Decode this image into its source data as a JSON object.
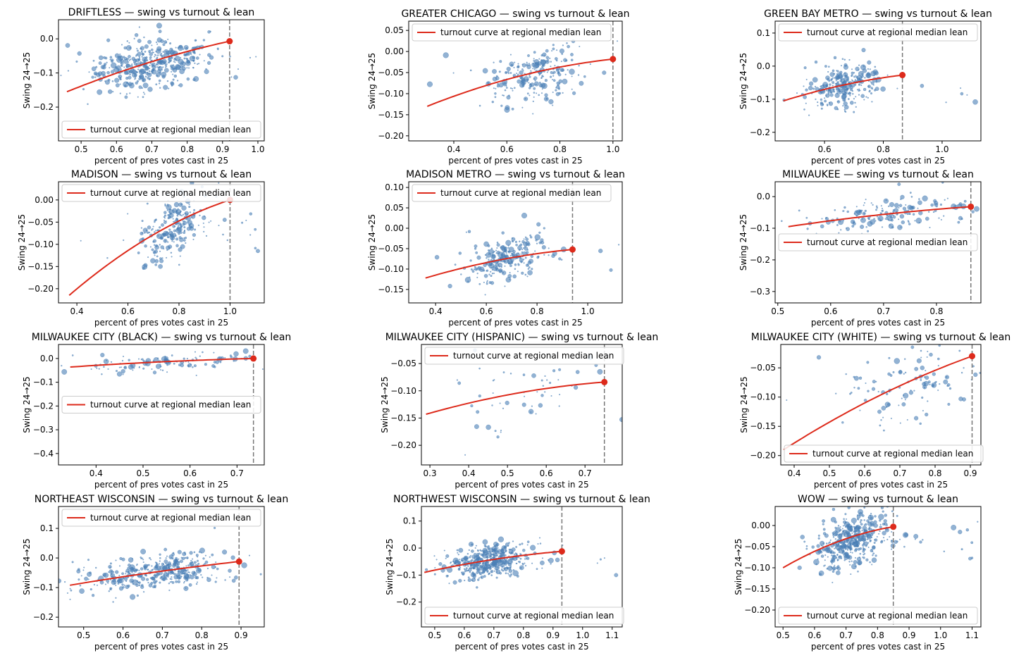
{
  "common": {
    "xlabel": "percent of pres votes cast in 25",
    "ylabel": "Swing 24→25",
    "legend_label": "turnout curve at regional median lean",
    "colors": {
      "points": "#4a7fb5",
      "curve": "#dd2a1b",
      "vline": "#777777"
    }
  },
  "chart_data": [
    {
      "type": "scatter",
      "title": "DRIFTLESS — swing vs turnout & lean",
      "xlim": [
        0.436,
        1.018
      ],
      "ylim": [
        -0.299,
        0.056
      ],
      "xticks": [
        "0.5",
        "0.6",
        "0.7",
        "0.8",
        "0.9",
        "1.0"
      ],
      "yticks": [
        "0.0",
        "−0.1",
        "−0.2"
      ],
      "curve": [
        [
          0.46,
          -0.155
        ],
        [
          0.69,
          -0.07
        ],
        [
          0.92,
          -0.007
        ]
      ],
      "vline": 0.92,
      "legend": "lower-left",
      "cluster": {
        "cx": 0.7,
        "cy": -0.075,
        "sx": 0.08,
        "sy": 0.035,
        "n": 450
      }
    },
    {
      "type": "scatter",
      "title": "GREATER CHICAGO — swing vs turnout & lean",
      "xlim": [
        0.23,
        1.035
      ],
      "ylim": [
        -0.212,
        0.072
      ],
      "xticks": [
        "0.4",
        "0.6",
        "0.8",
        "1.0"
      ],
      "yticks": [
        "0.05",
        "0.00",
        "−0.05",
        "−0.10",
        "−0.15",
        "−0.20"
      ],
      "curve": [
        [
          0.3,
          -0.13
        ],
        [
          0.65,
          -0.058
        ],
        [
          1.0,
          -0.018
        ]
      ],
      "vline": 1.0,
      "legend": "upper-left",
      "cluster": {
        "cx": 0.7,
        "cy": -0.06,
        "sx": 0.09,
        "sy": 0.03,
        "n": 250
      }
    },
    {
      "type": "scatter",
      "title": "GREEN BAY METRO — swing vs turnout & lean",
      "xlim": [
        0.432,
        1.132
      ],
      "ylim": [
        -0.226,
        0.136
      ],
      "xticks": [
        "0.6",
        "0.8",
        "1.0"
      ],
      "yticks": [
        "0.1",
        "0.0",
        "−0.1",
        "−0.2"
      ],
      "curve": [
        [
          0.46,
          -0.105
        ],
        [
          0.66,
          -0.058
        ],
        [
          0.865,
          -0.027
        ]
      ],
      "vline": 0.865,
      "legend": "upper-left",
      "cluster": {
        "cx": 0.66,
        "cy": -0.06,
        "sx": 0.06,
        "sy": 0.03,
        "n": 300
      }
    },
    {
      "type": "scatter",
      "title": "MADISON — swing vs turnout & lean",
      "xlim": [
        0.328,
        1.134
      ],
      "ylim": [
        -0.232,
        0.041
      ],
      "xticks": [
        "0.4",
        "0.6",
        "0.8",
        "1.0"
      ],
      "yticks": [
        "0.00",
        "−0.05",
        "−0.10",
        "−0.15",
        "−0.20"
      ],
      "curve": [
        [
          0.37,
          -0.215
        ],
        [
          0.68,
          -0.085
        ],
        [
          1.0,
          0.0
        ]
      ],
      "vline": 1.0,
      "legend": "upper-left",
      "cluster": {
        "cx": 0.78,
        "cy": -0.06,
        "sx": 0.07,
        "sy": 0.035,
        "n": 250
      }
    },
    {
      "type": "scatter",
      "title": "MADISON METRO — swing vs turnout & lean",
      "xlim": [
        0.294,
        1.136
      ],
      "ylim": [
        -0.183,
        0.114
      ],
      "xticks": [
        "0.4",
        "0.6",
        "0.8",
        "1.0"
      ],
      "yticks": [
        "0.10",
        "0.05",
        "0.00",
        "−0.05",
        "−0.10",
        "−0.15"
      ],
      "curve": [
        [
          0.36,
          -0.122
        ],
        [
          0.65,
          -0.078
        ],
        [
          0.94,
          -0.052
        ]
      ],
      "vline": 0.94,
      "legend": "upper-left",
      "cluster": {
        "cx": 0.68,
        "cy": -0.075,
        "sx": 0.08,
        "sy": 0.025,
        "n": 250
      }
    },
    {
      "type": "scatter",
      "title": "MILWAUKEE — swing vs turnout & lean",
      "xlim": [
        0.495,
        0.884
      ],
      "ylim": [
        -0.336,
        0.047
      ],
      "xticks": [
        "0.5",
        "0.6",
        "0.7",
        "0.8"
      ],
      "yticks": [
        "0.0",
        "−0.1",
        "−0.2",
        "−0.3"
      ],
      "curve": [
        [
          0.52,
          -0.095
        ],
        [
          0.69,
          -0.058
        ],
        [
          0.865,
          -0.032
        ]
      ],
      "vline": 0.865,
      "legend": "center-left",
      "cluster": {
        "cx": 0.7,
        "cy": -0.055,
        "sx": 0.08,
        "sy": 0.025,
        "n": 180
      }
    },
    {
      "type": "scatter",
      "title": "MILWAUKEE CITY (BLACK) — swing vs turnout & lean",
      "xlim": [
        0.32,
        0.758
      ],
      "ylim": [
        -0.448,
        0.059
      ],
      "xticks": [
        "0.4",
        "0.5",
        "0.6",
        "0.7"
      ],
      "yticks": [
        "0.0",
        "−0.1",
        "−0.2",
        "−0.3",
        "−0.4"
      ],
      "curve": [
        [
          0.345,
          -0.036
        ],
        [
          0.54,
          -0.014
        ],
        [
          0.735,
          0.0
        ]
      ],
      "vline": 0.735,
      "legend": "center-left",
      "cluster": {
        "cx": 0.55,
        "cy": -0.02,
        "sx": 0.1,
        "sy": 0.02,
        "n": 120
      }
    },
    {
      "type": "scatter",
      "title": "MILWAUKEE CITY (HISPANIC) — swing vs turnout & lean",
      "xlim": [
        0.278,
        0.796
      ],
      "ylim": [
        -0.236,
        -0.015
      ],
      "xticks": [
        "0.3",
        "0.4",
        "0.5",
        "0.6",
        "0.7"
      ],
      "yticks": [
        "−0.05",
        "−0.10",
        "−0.15",
        "−0.20"
      ],
      "curve": [
        [
          0.29,
          -0.143
        ],
        [
          0.52,
          -0.105
        ],
        [
          0.75,
          -0.084
        ]
      ],
      "vline": 0.75,
      "legend": "upper-left",
      "cluster": {
        "cx": 0.55,
        "cy": -0.1,
        "sx": 0.12,
        "sy": 0.04,
        "n": 60
      }
    },
    {
      "type": "scatter",
      "title": "MILWAUKEE CITY (WHITE) — swing vs turnout & lean",
      "xlim": [
        0.362,
        0.93
      ],
      "ylim": [
        -0.216,
        -0.01
      ],
      "xticks": [
        "0.4",
        "0.5",
        "0.6",
        "0.7",
        "0.8",
        "0.9"
      ],
      "yticks": [
        "−0.05",
        "−0.10",
        "−0.15",
        "−0.20"
      ],
      "curve": [
        [
          0.37,
          -0.19
        ],
        [
          0.64,
          -0.098
        ],
        [
          0.905,
          -0.03
        ]
      ],
      "vline": 0.905,
      "legend": "lower-left",
      "cluster": {
        "cx": 0.72,
        "cy": -0.08,
        "sx": 0.1,
        "sy": 0.035,
        "n": 120
      }
    },
    {
      "type": "scatter",
      "title": "NORTHEAST WISCONSIN — swing vs turnout & lean",
      "xlim": [
        0.436,
        0.959
      ],
      "ylim": [
        -0.233,
        0.174
      ],
      "xticks": [
        "0.5",
        "0.6",
        "0.7",
        "0.8",
        "0.9"
      ],
      "yticks": [
        "0.1",
        "0.0",
        "−0.1",
        "−0.2"
      ],
      "curve": [
        [
          0.465,
          -0.092
        ],
        [
          0.68,
          -0.048
        ],
        [
          0.895,
          -0.012
        ]
      ],
      "vline": 0.895,
      "legend": "upper-left",
      "cluster": {
        "cx": 0.68,
        "cy": -0.05,
        "sx": 0.08,
        "sy": 0.03,
        "n": 400
      }
    },
    {
      "type": "scatter",
      "title": "NORTHWEST WISCONSIN — swing vs turnout & lean",
      "xlim": [
        0.455,
        1.134
      ],
      "ylim": [
        -0.292,
        0.154
      ],
      "xticks": [
        "0.5",
        "0.6",
        "0.7",
        "0.8",
        "0.9",
        "1.0",
        "1.1"
      ],
      "yticks": [
        "0.1",
        "0.0",
        "−0.1",
        "−0.2"
      ],
      "curve": [
        [
          0.465,
          -0.09
        ],
        [
          0.7,
          -0.042
        ],
        [
          0.93,
          -0.012
        ]
      ],
      "vline": 0.93,
      "legend": "lower-left",
      "cluster": {
        "cx": 0.68,
        "cy": -0.05,
        "sx": 0.07,
        "sy": 0.03,
        "n": 450
      }
    },
    {
      "type": "scatter",
      "title": "WOW — swing vs turnout & lean",
      "xlim": [
        0.475,
        1.128
      ],
      "ylim": [
        -0.24,
        0.045
      ],
      "xticks": [
        "0.5",
        "0.6",
        "0.7",
        "0.8",
        "0.9",
        "1.0",
        "1.1"
      ],
      "yticks": [
        "0.00",
        "−0.05",
        "−0.10",
        "−0.15",
        "−0.20"
      ],
      "curve": [
        [
          0.5,
          -0.1
        ],
        [
          0.675,
          -0.038
        ],
        [
          0.85,
          -0.003
        ]
      ],
      "vline": 0.85,
      "legend": "lower-left",
      "cluster": {
        "cx": 0.72,
        "cy": -0.035,
        "sx": 0.06,
        "sy": 0.03,
        "n": 450
      }
    }
  ]
}
